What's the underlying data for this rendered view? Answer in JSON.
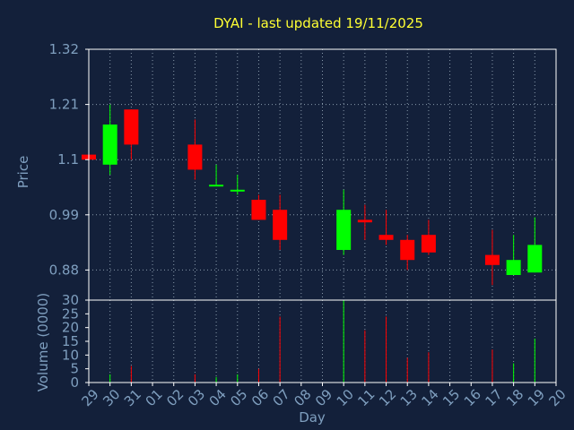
{
  "chart_data": {
    "type": "candlestick",
    "title": "DYAI - last updated 19/11/2025",
    "xlabel": "Day",
    "price_panel": {
      "ylabel": "Price",
      "ylim": [
        0.82,
        1.32
      ],
      "yticks": [
        "1.32",
        "1.21",
        "1.1",
        "0.99",
        "0.88"
      ],
      "ytick_values": [
        1.32,
        1.21,
        1.1,
        0.99,
        0.88
      ]
    },
    "volume_panel": {
      "ylabel": "Volume (0000)",
      "ylim": [
        0,
        30
      ],
      "yticks": [
        "30",
        "25",
        "20",
        "15",
        "10",
        "5",
        "0"
      ],
      "ytick_values": [
        30,
        25,
        20,
        15,
        10,
        5,
        0
      ]
    },
    "x_tick_labels": [
      "29",
      "30",
      "31",
      "01",
      "02",
      "03",
      "04",
      "05",
      "06",
      "07",
      "08",
      "09",
      "10",
      "11",
      "12",
      "13",
      "14",
      "15",
      "16",
      "17",
      "18",
      "19",
      "20"
    ],
    "grid": true,
    "colors": {
      "up": "#00ff00",
      "down": "#ff0000",
      "background": "#13203a",
      "title": "#ffff33",
      "axis_text": "#7f9fbf"
    },
    "candles": [
      {
        "day": "29",
        "open": 1.11,
        "high": 1.11,
        "low": 1.1,
        "close": 1.1,
        "volume": 0
      },
      {
        "day": "30",
        "open": 1.09,
        "high": 1.21,
        "low": 1.07,
        "close": 1.17,
        "volume": 3
      },
      {
        "day": "31",
        "open": 1.2,
        "high": 1.2,
        "low": 1.1,
        "close": 1.13,
        "volume": 6
      },
      {
        "day": "03",
        "open": 1.13,
        "high": 1.18,
        "low": 1.06,
        "close": 1.08,
        "volume": 3
      },
      {
        "day": "04",
        "open": 1.05,
        "high": 1.09,
        "low": 1.05,
        "close": 1.05,
        "volume": 2
      },
      {
        "day": "05",
        "open": 1.04,
        "high": 1.07,
        "low": 1.03,
        "close": 1.04,
        "volume": 3
      },
      {
        "day": "06",
        "open": 1.02,
        "high": 1.03,
        "low": 0.98,
        "close": 0.98,
        "volume": 5
      },
      {
        "day": "07",
        "open": 1.0,
        "high": 1.03,
        "low": 0.92,
        "close": 0.94,
        "volume": 24
      },
      {
        "day": "10",
        "open": 0.92,
        "high": 1.04,
        "low": 0.91,
        "close": 1.0,
        "volume": 30
      },
      {
        "day": "11",
        "open": 0.98,
        "high": 1.01,
        "low": 0.94,
        "close": 0.975,
        "volume": 19
      },
      {
        "day": "12",
        "open": 0.95,
        "high": 1.0,
        "low": 0.93,
        "close": 0.94,
        "volume": 24
      },
      {
        "day": "13",
        "open": 0.94,
        "high": 0.95,
        "low": 0.88,
        "close": 0.9,
        "volume": 9
      },
      {
        "day": "14",
        "open": 0.95,
        "high": 0.98,
        "low": 0.91,
        "close": 0.915,
        "volume": 11
      },
      {
        "day": "17",
        "open": 0.91,
        "high": 0.96,
        "low": 0.85,
        "close": 0.89,
        "volume": 12
      },
      {
        "day": "18",
        "open": 0.87,
        "high": 0.95,
        "low": 0.87,
        "close": 0.9,
        "volume": 7
      },
      {
        "day": "19",
        "open": 0.875,
        "high": 0.985,
        "low": 0.875,
        "close": 0.93,
        "volume": 16
      }
    ]
  }
}
